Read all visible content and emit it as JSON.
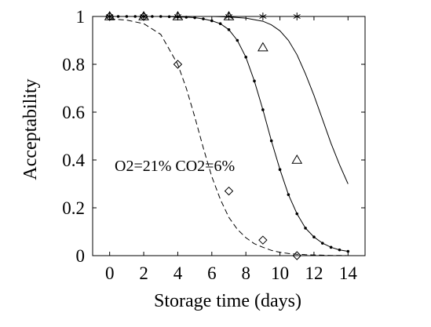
{
  "chart_data": {
    "type": "line",
    "title": "",
    "xlabel": "Storage time (days)",
    "ylabel": "Acceptability",
    "xlim": [
      -1,
      15
    ],
    "ylim": [
      0,
      1
    ],
    "xticks": [
      0,
      2,
      4,
      6,
      8,
      10,
      12,
      14
    ],
    "yticks": [
      0,
      0.2,
      0.4,
      0.6,
      0.8,
      1
    ],
    "ytick_labels": [
      "0",
      "0.2",
      "0.4",
      "0.6",
      "0.8",
      "1"
    ],
    "grid": false,
    "annotation": "O2=21% CO2=6%",
    "series": [
      {
        "style": "dashed-line",
        "x": [
          0,
          1,
          2,
          3,
          4,
          4.5,
          5,
          5.5,
          6,
          6.5,
          7,
          7.5,
          8,
          8.5,
          9,
          9.5,
          10,
          10.5,
          11,
          11.5,
          12,
          12.5,
          13,
          13.5,
          14
        ],
        "y": [
          0.99,
          0.985,
          0.97,
          0.925,
          0.8,
          0.7,
          0.58,
          0.45,
          0.33,
          0.235,
          0.16,
          0.11,
          0.075,
          0.05,
          0.035,
          0.022,
          0.014,
          0.009,
          0.006,
          0.004,
          0.003,
          0.002,
          0.001,
          0.001,
          0.0
        ]
      },
      {
        "style": "line-with-dots",
        "x": [
          0,
          0.5,
          1,
          1.5,
          2,
          2.5,
          3,
          3.5,
          4,
          4.5,
          5,
          5.5,
          6,
          6.5,
          7,
          7.5,
          8,
          8.5,
          9,
          9.5,
          10,
          10.5,
          11,
          11.5,
          12,
          12.5,
          13,
          13.5,
          14
        ],
        "y": [
          1.0,
          1.0,
          1.0,
          1.0,
          1.0,
          1.0,
          1.0,
          0.999,
          0.998,
          0.997,
          0.995,
          0.99,
          0.982,
          0.97,
          0.945,
          0.9,
          0.83,
          0.73,
          0.61,
          0.48,
          0.36,
          0.255,
          0.175,
          0.115,
          0.078,
          0.052,
          0.035,
          0.024,
          0.018
        ]
      },
      {
        "style": "solid-line",
        "x": [
          0,
          2,
          4,
          6,
          7,
          8,
          9,
          9.5,
          10,
          10.5,
          11,
          11.5,
          12,
          12.5,
          13,
          13.5,
          14
        ],
        "y": [
          1.0,
          1.0,
          1.0,
          1.0,
          0.998,
          0.993,
          0.98,
          0.965,
          0.94,
          0.9,
          0.84,
          0.76,
          0.67,
          0.57,
          0.47,
          0.38,
          0.3
        ]
      },
      {
        "style": "diamond-markers",
        "x": [
          0,
          2,
          4,
          7,
          9,
          11
        ],
        "y": [
          1.0,
          1.0,
          0.8,
          0.27,
          0.065,
          0.0
        ]
      },
      {
        "style": "triangle-markers",
        "x": [
          0,
          2,
          4,
          7,
          9,
          11
        ],
        "y": [
          1.0,
          1.0,
          1.0,
          1.0,
          0.87,
          0.4
        ]
      },
      {
        "style": "star-markers",
        "x": [
          0,
          2,
          4,
          7,
          9,
          11
        ],
        "y": [
          1.0,
          1.0,
          1.0,
          1.0,
          1.0,
          1.0
        ]
      }
    ]
  }
}
